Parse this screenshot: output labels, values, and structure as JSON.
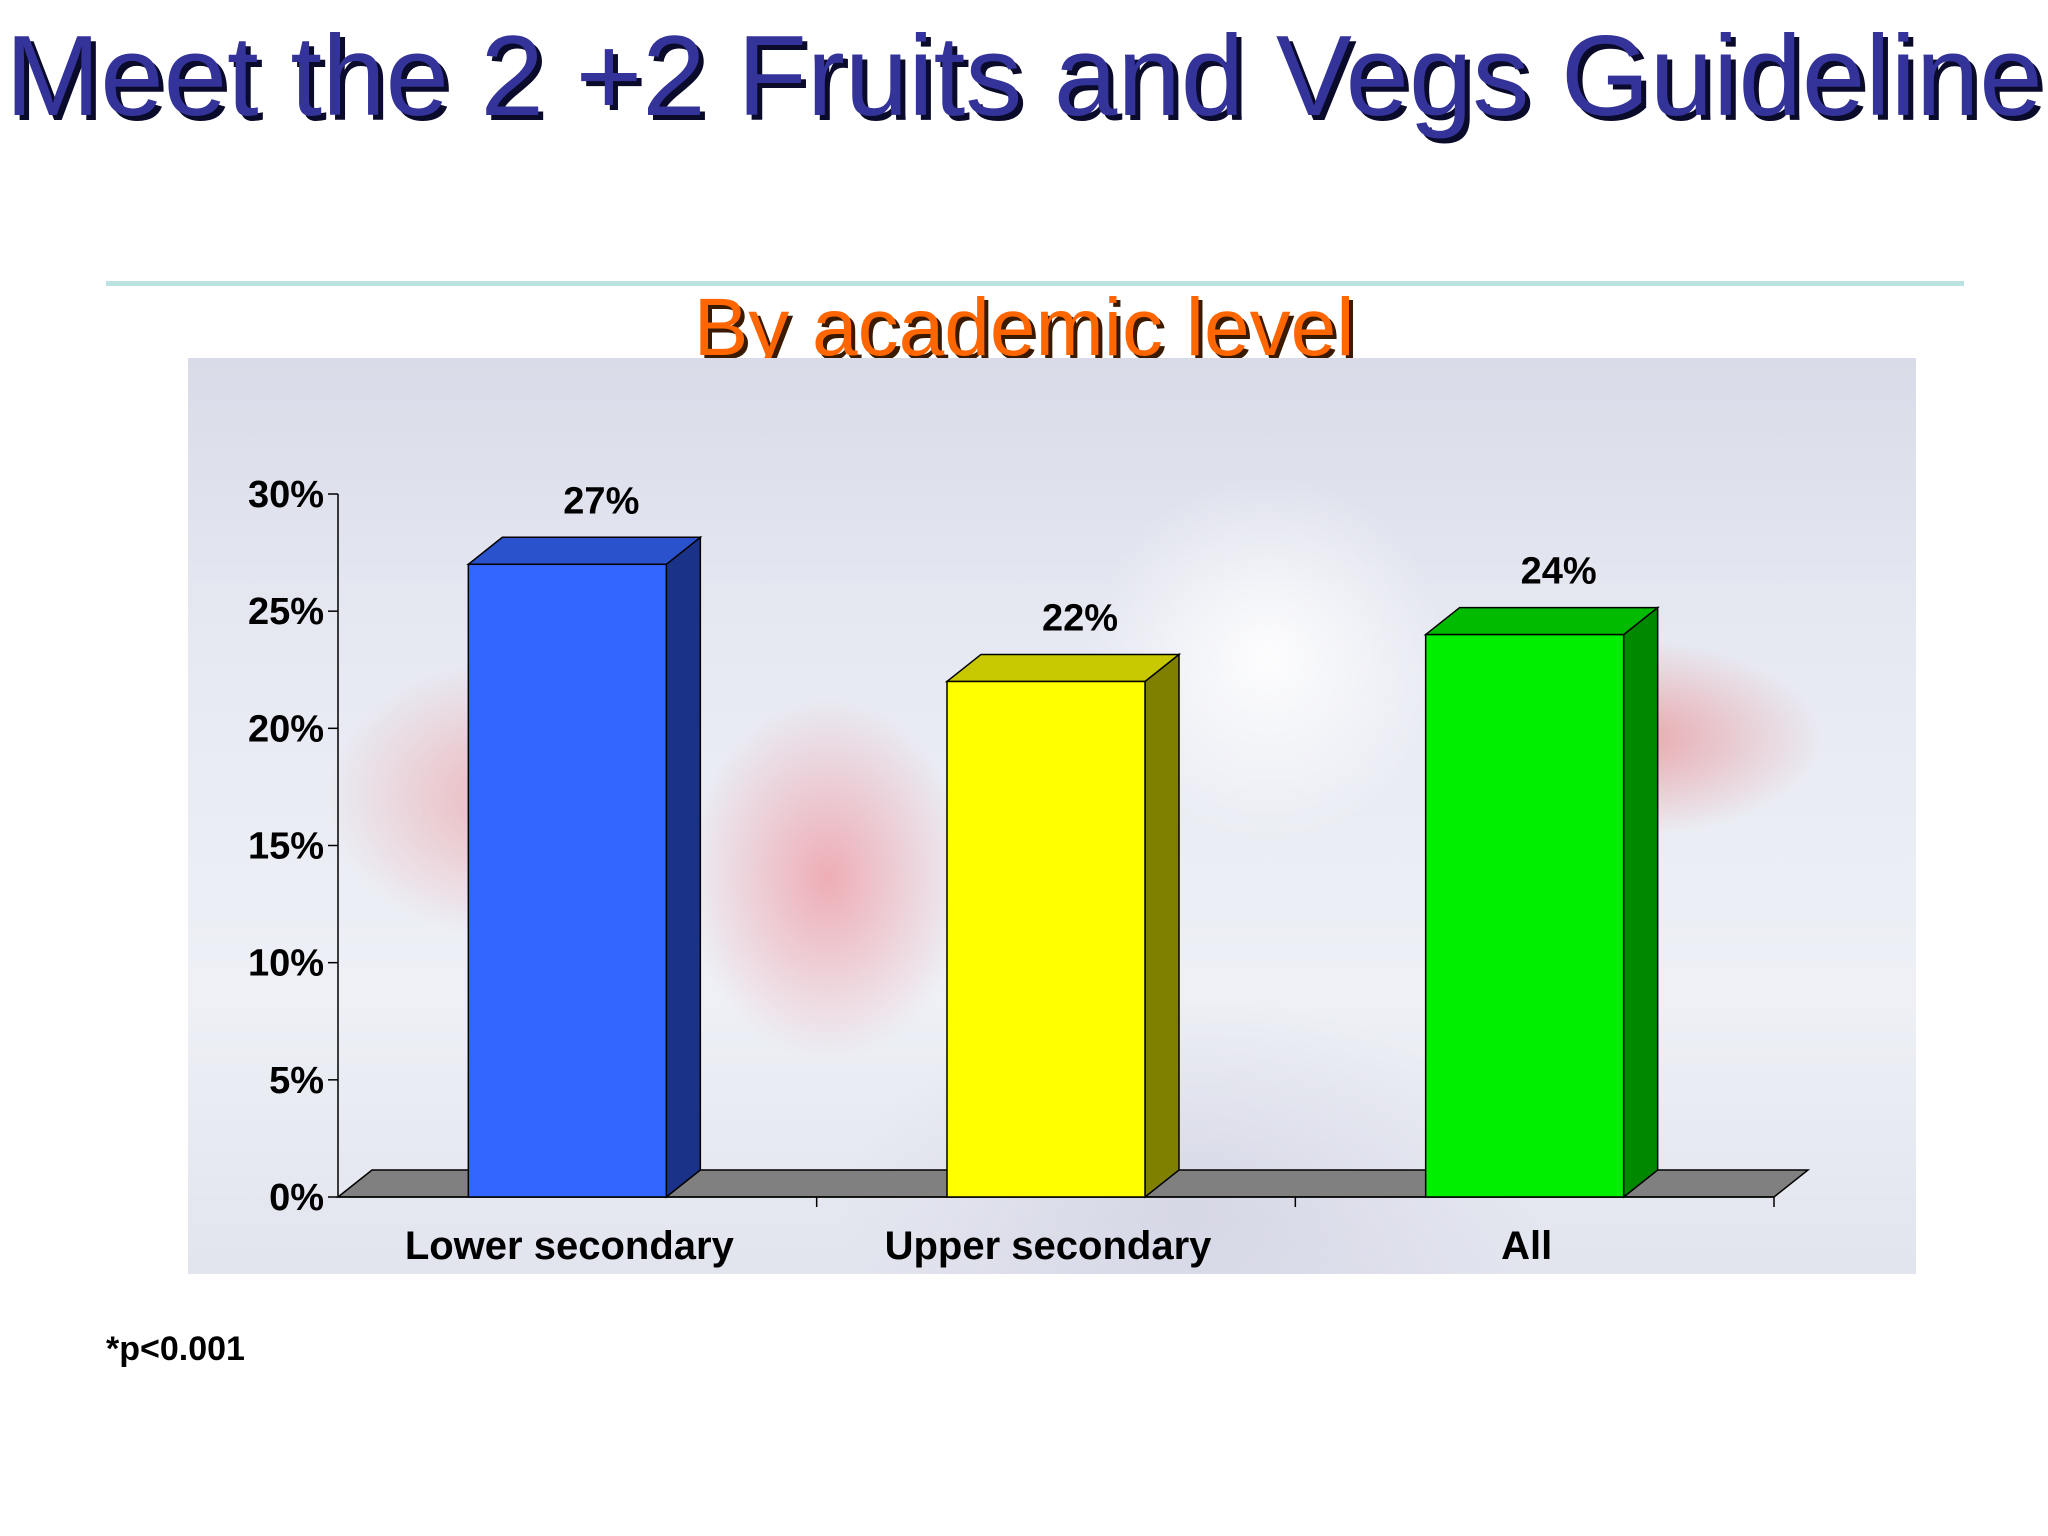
{
  "slide": {
    "title": "Meet the 2 +2 Fruits and Vegs Guideline",
    "subtitle": "By academic level",
    "footnote": "*p<0.001"
  },
  "colors": {
    "title": "#333399",
    "subtitle": "#ff6600",
    "rule": "#b9e2e0"
  },
  "chart_data": {
    "type": "bar",
    "title": "",
    "xlabel": "",
    "ylabel": "",
    "categories": [
      "Lower secondary",
      "Upper secondary",
      "All"
    ],
    "values": [
      27,
      22,
      24
    ],
    "value_labels": [
      "27%",
      "22%",
      "24%"
    ],
    "bar_colors": [
      {
        "front": "#3366ff",
        "side": "#1a3388",
        "top": "#2a52cc"
      },
      {
        "front": "#ffff00",
        "side": "#808000",
        "top": "#c8c800"
      },
      {
        "front": "#00ee00",
        "side": "#008800",
        "top": "#00bb00"
      }
    ],
    "ylim": [
      0,
      30
    ],
    "yticks": [
      0,
      5,
      10,
      15,
      20,
      25,
      30
    ],
    "ytick_labels": [
      "0%",
      "5%",
      "10%",
      "15%",
      "20%",
      "25%",
      "30%"
    ],
    "grid": false,
    "legend": "none",
    "style": "3d-column"
  }
}
